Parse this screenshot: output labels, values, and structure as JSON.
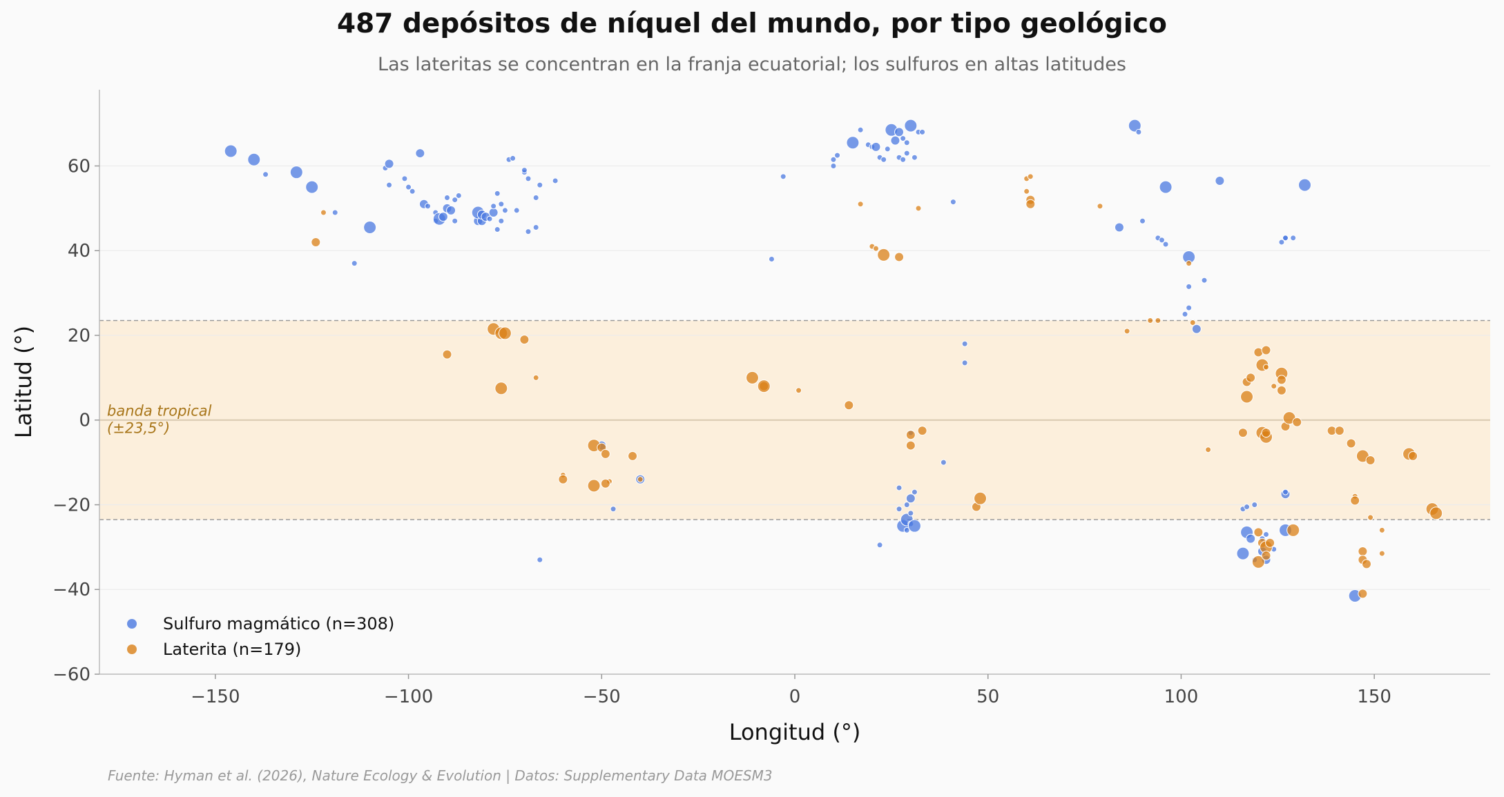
{
  "chart_data": {
    "type": "scatter",
    "title": "487 depósitos de níquel del mundo, por tipo geológico",
    "subtitle": "Las lateritas se concentran en la franja ecuatorial; los sulfuros en altas latitudes",
    "xlabel": "Longitud (°)",
    "ylabel": "Latitud (°)",
    "xlim": [
      -180,
      180
    ],
    "ylim": [
      -60,
      78
    ],
    "x_ticks": [
      -150,
      -100,
      -50,
      0,
      50,
      100,
      150
    ],
    "y_ticks": [
      -60,
      -40,
      -20,
      0,
      20,
      40,
      60
    ],
    "grid": "horizontal",
    "legend_position": "bottom-left",
    "tropical_band": {
      "label_line1": "banda tropical",
      "label_line2": "(±23,5°)",
      "min": -23.5,
      "max": 23.5
    },
    "series": [
      {
        "name": "Sulfuro magmático (n=308)",
        "color": "#4a78e0",
        "points": [
          [
            -146,
            63.5,
            3
          ],
          [
            -140,
            61.5,
            3
          ],
          [
            -137,
            58,
            1
          ],
          [
            -129,
            58.5,
            3
          ],
          [
            -125,
            55,
            3
          ],
          [
            -119,
            49,
            1
          ],
          [
            -114,
            37,
            1
          ],
          [
            -110,
            45.5,
            3
          ],
          [
            -106,
            59.5,
            1
          ],
          [
            -105,
            60.5,
            2
          ],
          [
            -105,
            55.5,
            1
          ],
          [
            -101,
            57,
            1
          ],
          [
            -100,
            55,
            1
          ],
          [
            -99,
            54,
            1
          ],
          [
            -97,
            63,
            2
          ],
          [
            -96,
            51,
            2
          ],
          [
            -95,
            50.5,
            1
          ],
          [
            -93,
            47,
            1
          ],
          [
            -93,
            49,
            1
          ],
          [
            -92,
            47.5,
            3
          ],
          [
            -91,
            48,
            2
          ],
          [
            -90,
            50,
            2
          ],
          [
            -90,
            52.5,
            1
          ],
          [
            -89,
            49.5,
            2
          ],
          [
            -88,
            47,
            1
          ],
          [
            -88,
            52,
            1
          ],
          [
            -87,
            53,
            1
          ],
          [
            -82,
            47,
            2
          ],
          [
            -82,
            49,
            3
          ],
          [
            -81,
            47,
            2
          ],
          [
            -81,
            48.5,
            2
          ],
          [
            -80,
            48,
            2
          ],
          [
            -79,
            47.5,
            1
          ],
          [
            -78,
            49,
            2
          ],
          [
            -78,
            50.5,
            1
          ],
          [
            -77,
            45,
            1
          ],
          [
            -77,
            53.5,
            1
          ],
          [
            -76,
            47,
            1
          ],
          [
            -76,
            51,
            1
          ],
          [
            -75,
            49.5,
            1
          ],
          [
            -74,
            61.5,
            1
          ],
          [
            -73,
            61.8,
            1
          ],
          [
            -72,
            49.5,
            1
          ],
          [
            -70,
            58.5,
            1
          ],
          [
            -70,
            59,
            1
          ],
          [
            -69,
            57,
            1
          ],
          [
            -69,
            44.5,
            1
          ],
          [
            -67,
            45.5,
            1
          ],
          [
            -67,
            52.5,
            1
          ],
          [
            -66,
            55.5,
            1
          ],
          [
            -62,
            56.5,
            1
          ],
          [
            -66,
            -33,
            1
          ],
          [
            -47,
            -21,
            1
          ],
          [
            -50,
            -6,
            2
          ],
          [
            -40,
            -14,
            2
          ],
          [
            -6,
            38,
            1
          ],
          [
            -3,
            57.5,
            1
          ],
          [
            10,
            61.5,
            1
          ],
          [
            10,
            60,
            1
          ],
          [
            11,
            62.5,
            1
          ],
          [
            15,
            65.5,
            3
          ],
          [
            17,
            68.5,
            1
          ],
          [
            19,
            65,
            1
          ],
          [
            20,
            64.5,
            1
          ],
          [
            21,
            64.5,
            2
          ],
          [
            22,
            62,
            1
          ],
          [
            23,
            61.5,
            1
          ],
          [
            24,
            64,
            1
          ],
          [
            25,
            68.5,
            3
          ],
          [
            26,
            66,
            2
          ],
          [
            27,
            68,
            2
          ],
          [
            27,
            62,
            1
          ],
          [
            28,
            66.5,
            1
          ],
          [
            28,
            61.5,
            1
          ],
          [
            29,
            63,
            1
          ],
          [
            29,
            65.5,
            1
          ],
          [
            30,
            69.5,
            3
          ],
          [
            31,
            62,
            1
          ],
          [
            32,
            68,
            1
          ],
          [
            33,
            68,
            1
          ],
          [
            41,
            51.5,
            1
          ],
          [
            44,
            18,
            1
          ],
          [
            44,
            13.5,
            1
          ],
          [
            38.5,
            -10,
            1
          ],
          [
            27,
            -16,
            1
          ],
          [
            27,
            -21,
            1
          ],
          [
            28,
            -25,
            3
          ],
          [
            29,
            -20,
            1
          ],
          [
            29,
            -23.5,
            3
          ],
          [
            29,
            -26,
            1
          ],
          [
            30,
            -22,
            1
          ],
          [
            30,
            -24.5,
            1
          ],
          [
            31,
            -25,
            3
          ],
          [
            30,
            -18.5,
            2
          ],
          [
            31,
            -17,
            1
          ],
          [
            22,
            -29.5,
            1
          ],
          [
            30,
            -3,
            1
          ],
          [
            84,
            45.5,
            2
          ],
          [
            88,
            69.5,
            3
          ],
          [
            89,
            68,
            1
          ],
          [
            90,
            47,
            1
          ],
          [
            94,
            43,
            1
          ],
          [
            95,
            42.5,
            1
          ],
          [
            96,
            41.5,
            1
          ],
          [
            96,
            55,
            3
          ],
          [
            101,
            25,
            1
          ],
          [
            102,
            38.5,
            3
          ],
          [
            102,
            31.5,
            1
          ],
          [
            102,
            26.5,
            1
          ],
          [
            104,
            21.5,
            2
          ],
          [
            106,
            33,
            1
          ],
          [
            110,
            56.5,
            2
          ],
          [
            126,
            42,
            1
          ],
          [
            127,
            43,
            1
          ],
          [
            127,
            43,
            1
          ],
          [
            129,
            43,
            1
          ],
          [
            132,
            55.5,
            3
          ],
          [
            116,
            -21,
            1
          ],
          [
            117,
            -20.5,
            1
          ],
          [
            119,
            -20,
            1
          ],
          [
            117,
            -26.5,
            3
          ],
          [
            118,
            -28,
            2
          ],
          [
            119,
            -33,
            1
          ],
          [
            116,
            -31.5,
            3
          ],
          [
            121,
            -28,
            1
          ],
          [
            121,
            -31,
            2
          ],
          [
            122,
            -27,
            1
          ],
          [
            122,
            -33,
            2
          ],
          [
            124,
            -30.5,
            1
          ],
          [
            127,
            -17.5,
            2
          ],
          [
            127,
            -26,
            3
          ],
          [
            145,
            -41.5,
            3
          ],
          [
            127,
            -17,
            1
          ]
        ]
      },
      {
        "name": "Laterita (n=179)",
        "color": "#d97f16",
        "points": [
          [
            -122,
            49,
            1
          ],
          [
            -124,
            42,
            2
          ],
          [
            -78,
            21.5,
            3
          ],
          [
            -76,
            20.5,
            3
          ],
          [
            -75,
            20.5,
            3
          ],
          [
            -70,
            19,
            2
          ],
          [
            -90,
            15.5,
            2
          ],
          [
            -67,
            10,
            1
          ],
          [
            -76,
            7.5,
            3
          ],
          [
            -60,
            -13,
            1
          ],
          [
            -60,
            -14,
            2
          ],
          [
            -52,
            -6,
            3
          ],
          [
            -50,
            -6.5,
            2
          ],
          [
            -49,
            -8,
            2
          ],
          [
            -48,
            -14.5,
            1
          ],
          [
            -49,
            -15,
            2
          ],
          [
            -52,
            -15.5,
            3
          ],
          [
            -42,
            -8.5,
            2
          ],
          [
            -40,
            -14,
            1
          ],
          [
            -11,
            10,
            3
          ],
          [
            -8,
            8,
            2
          ],
          [
            -8,
            8,
            3
          ],
          [
            1,
            7,
            1
          ],
          [
            14,
            3.5,
            2
          ],
          [
            17,
            51,
            1
          ],
          [
            20,
            41,
            1
          ],
          [
            21,
            40.5,
            1
          ],
          [
            23,
            39,
            3
          ],
          [
            27,
            38.5,
            2
          ],
          [
            30,
            -3.5,
            2
          ],
          [
            30,
            -6,
            2
          ],
          [
            33,
            -2.5,
            2
          ],
          [
            32,
            50,
            1
          ],
          [
            47,
            -20.5,
            2
          ],
          [
            48,
            -18.5,
            3
          ],
          [
            60,
            57,
            1
          ],
          [
            60,
            54,
            1
          ],
          [
            61,
            52,
            2
          ],
          [
            61,
            51,
            2
          ],
          [
            61,
            57.5,
            1
          ],
          [
            79,
            50.5,
            1
          ],
          [
            86,
            21,
            1
          ],
          [
            92,
            23.5,
            1
          ],
          [
            94,
            23.5,
            1
          ],
          [
            102,
            37,
            1
          ],
          [
            103,
            23,
            1
          ],
          [
            107,
            -7,
            1
          ],
          [
            116,
            -3,
            2
          ],
          [
            117,
            5.5,
            3
          ],
          [
            117,
            9,
            2
          ],
          [
            118,
            10,
            2
          ],
          [
            120,
            16,
            2
          ],
          [
            121,
            13,
            3
          ],
          [
            122,
            16.5,
            2
          ],
          [
            122,
            12.5,
            1
          ],
          [
            124,
            8,
            1
          ],
          [
            126,
            11,
            3
          ],
          [
            126,
            9.5,
            2
          ],
          [
            126,
            7,
            2
          ],
          [
            127,
            -1.5,
            2
          ],
          [
            128,
            0.5,
            3
          ],
          [
            130,
            -0.5,
            2
          ],
          [
            121,
            -3,
            3
          ],
          [
            122,
            -4,
            3
          ],
          [
            122,
            -3,
            2
          ],
          [
            120,
            -26.5,
            2
          ],
          [
            120,
            -33.5,
            3
          ],
          [
            121,
            -29,
            2
          ],
          [
            122,
            -30,
            3
          ],
          [
            122,
            -32,
            2
          ],
          [
            123,
            -29,
            2
          ],
          [
            129,
            -26,
            3
          ],
          [
            139,
            -2.5,
            2
          ],
          [
            141,
            -2.5,
            2
          ],
          [
            144,
            -5.5,
            2
          ],
          [
            145,
            -18,
            1
          ],
          [
            145,
            -19,
            2
          ],
          [
            147,
            -8.5,
            3
          ],
          [
            149,
            -9.5,
            2
          ],
          [
            149,
            -23,
            1
          ],
          [
            152,
            -26,
            1
          ],
          [
            152,
            -31.5,
            1
          ],
          [
            147,
            -31,
            2
          ],
          [
            147,
            -33,
            2
          ],
          [
            148,
            -34,
            2
          ],
          [
            147,
            -41,
            2
          ],
          [
            159,
            -8,
            3
          ],
          [
            160,
            -8.5,
            2
          ],
          [
            165,
            -21,
            3
          ],
          [
            166,
            -22,
            3
          ]
        ]
      }
    ],
    "source": "Fuente: Hyman et al. (2026), Nature Ecology & Evolution | Datos: Supplementary Data MOESM3"
  }
}
